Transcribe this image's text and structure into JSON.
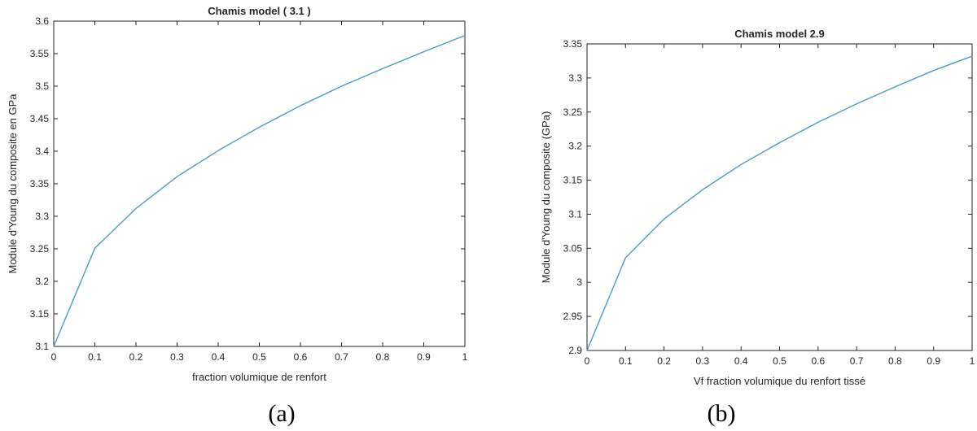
{
  "chart_data": [
    {
      "type": "line",
      "title": "Chamis model ( 3.1 )",
      "xlabel": "fraction volumique de renfort",
      "ylabel": "Module d'Young du composite en GPa",
      "caption": "(a)",
      "xlim": [
        0,
        1
      ],
      "ylim": [
        3.1,
        3.6
      ],
      "xticks": [
        "0",
        "0.1",
        "0.2",
        "0.3",
        "0.4",
        "0.5",
        "0.6",
        "0.7",
        "0.8",
        "0.9",
        "1"
      ],
      "yticks": [
        "3.1",
        "3.15",
        "3.2",
        "3.25",
        "3.3",
        "3.35",
        "3.4",
        "3.45",
        "3.5",
        "3.55",
        "3.6"
      ],
      "grid": false,
      "color": "#4a9cc4",
      "x": [
        0,
        0.1,
        0.2,
        0.3,
        0.4,
        0.5,
        0.6,
        0.7,
        0.8,
        0.9,
        1.0
      ],
      "y": [
        3.1,
        3.251,
        3.312,
        3.361,
        3.401,
        3.437,
        3.47,
        3.5,
        3.527,
        3.553,
        3.578
      ]
    },
    {
      "type": "line",
      "title": "Chamis model 2.9",
      "xlabel": "Vf fraction volumique du renfort tissé",
      "ylabel": "Module d'Young du composite (GPa)",
      "caption": "(b)",
      "xlim": [
        0,
        1
      ],
      "ylim": [
        2.9,
        3.35
      ],
      "xticks": [
        "0",
        "0.1",
        "0.2",
        "0.3",
        "0.4",
        "0.5",
        "0.6",
        "0.7",
        "0.8",
        "0.9",
        "1"
      ],
      "yticks": [
        "2.9",
        "2.95",
        "3",
        "3.05",
        "3.1",
        "3.15",
        "3.2",
        "3.25",
        "3.3",
        "3.35"
      ],
      "grid": false,
      "color": "#4a9cc4",
      "x": [
        0,
        0.1,
        0.2,
        0.3,
        0.4,
        0.5,
        0.6,
        0.7,
        0.8,
        0.9,
        1.0
      ],
      "y": [
        2.9,
        3.036,
        3.093,
        3.136,
        3.173,
        3.205,
        3.235,
        3.262,
        3.287,
        3.311,
        3.332
      ]
    }
  ]
}
